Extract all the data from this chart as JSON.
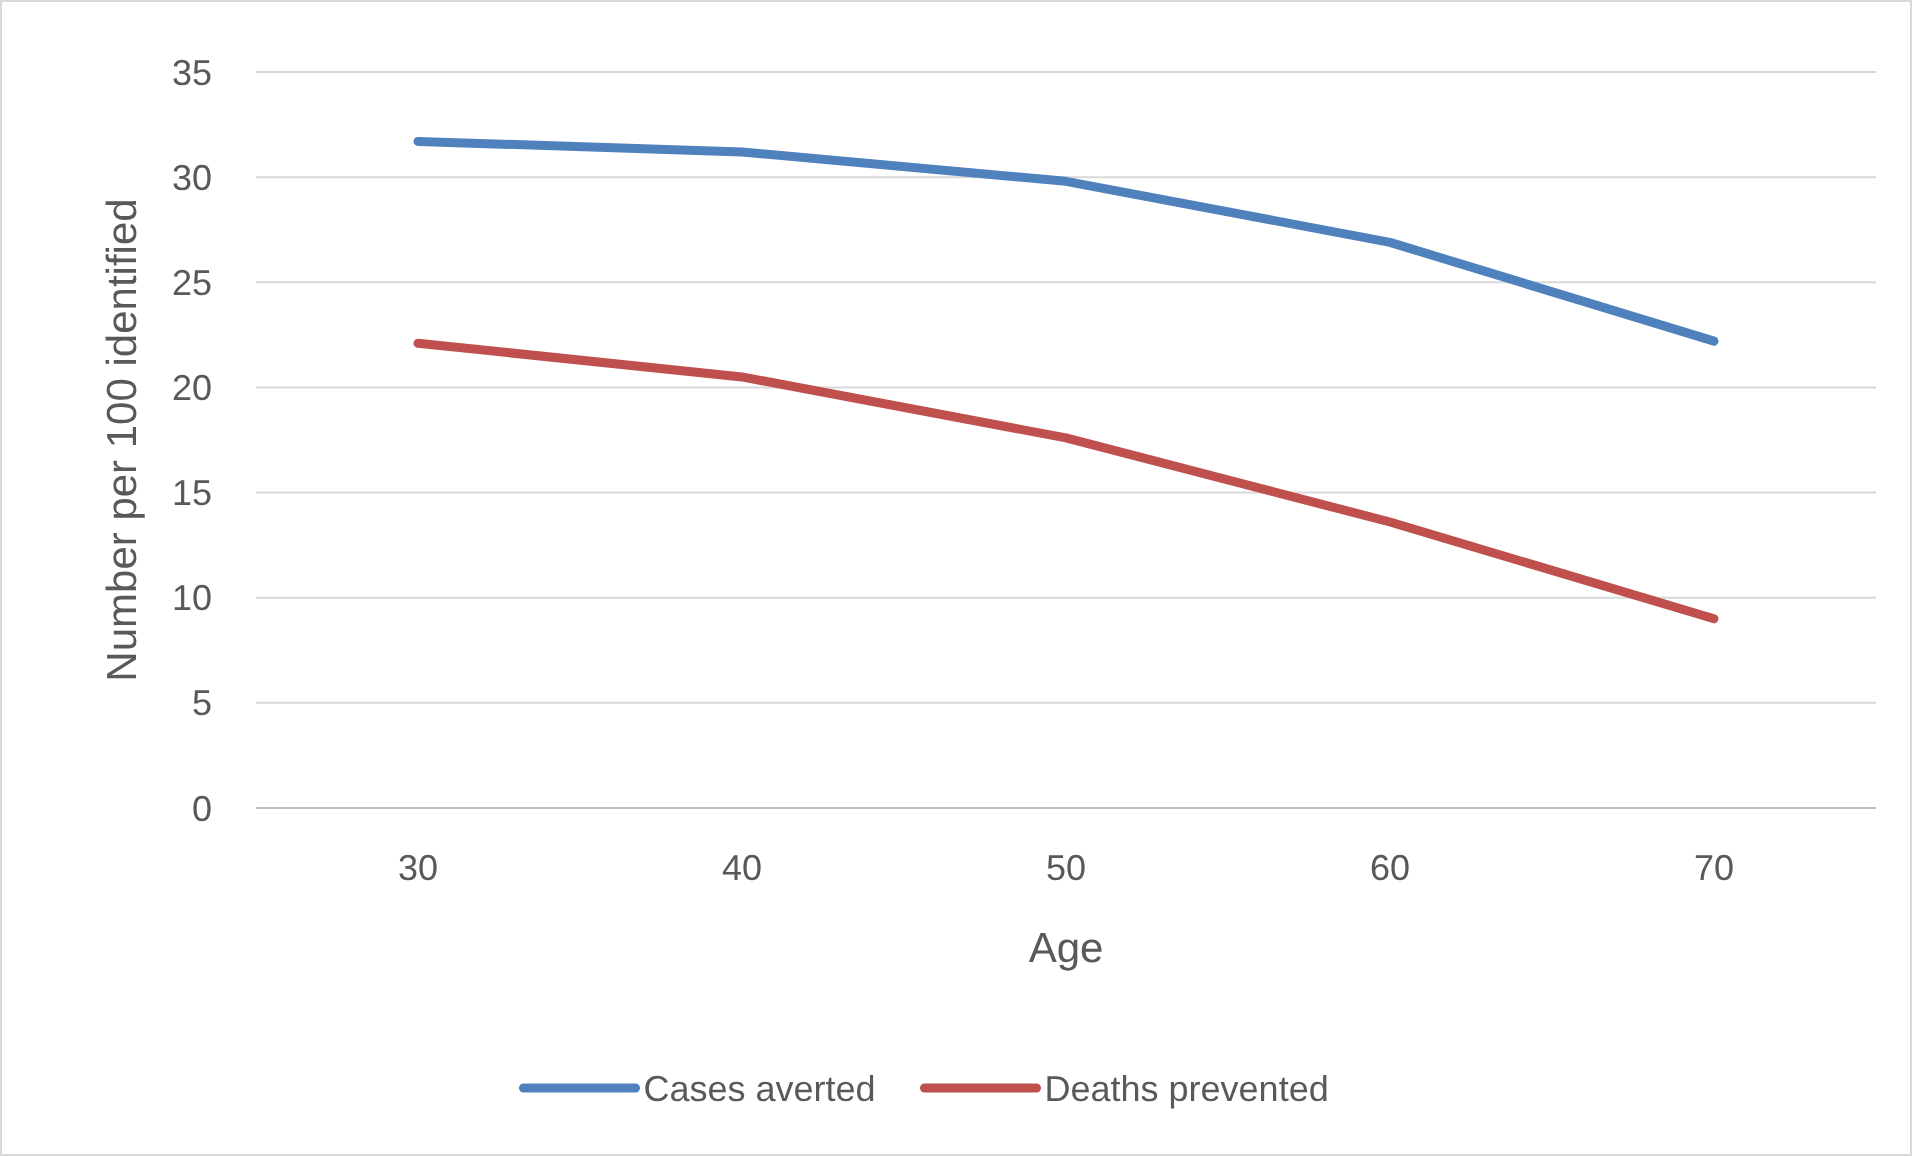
{
  "chart_data": {
    "type": "line",
    "xlabel": "Age",
    "ylabel": "Number per 100 identified",
    "categories": [
      "30",
      "40",
      "50",
      "60",
      "70"
    ],
    "series": [
      {
        "name": "Cases averted",
        "color": "#4f81bd",
        "values": [
          31.7,
          31.2,
          29.8,
          26.9,
          22.2
        ]
      },
      {
        "name": "Deaths prevented",
        "color": "#c0504d",
        "values": [
          22.1,
          20.5,
          17.6,
          13.6,
          9.0
        ]
      }
    ],
    "ylim": [
      0,
      35
    ],
    "yticks": [
      0,
      5,
      10,
      15,
      20,
      25,
      30,
      35
    ],
    "grid": "y",
    "legend": "bottom",
    "marker": "none",
    "line_style": "solid"
  }
}
